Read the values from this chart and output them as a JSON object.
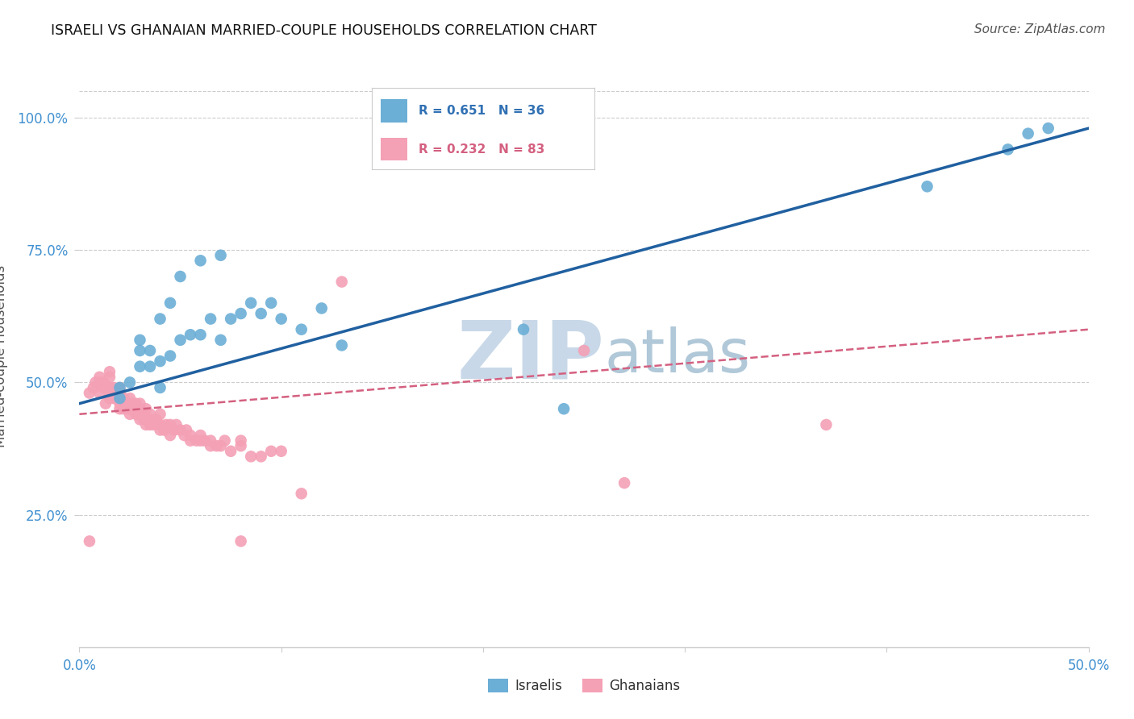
{
  "title": "ISRAELI VS GHANAIAN MARRIED-COUPLE HOUSEHOLDS CORRELATION CHART",
  "source": "Source: ZipAtlas.com",
  "ylabel": "Married-couple Households",
  "xlim": [
    0.0,
    0.5
  ],
  "ylim": [
    0.0,
    1.05
  ],
  "xticks": [
    0.0,
    0.1,
    0.2,
    0.3,
    0.4,
    0.5
  ],
  "xticklabels": [
    "0.0%",
    "",
    "",
    "",
    "",
    "50.0%"
  ],
  "yticks": [
    0.25,
    0.5,
    0.75,
    1.0
  ],
  "yticklabels": [
    "25.0%",
    "50.0%",
    "75.0%",
    "100.0%"
  ],
  "israeli_R": "0.651",
  "israeli_N": "36",
  "ghanaian_R": "0.232",
  "ghanaian_N": "83",
  "israeli_color": "#6baed6",
  "ghanaian_color": "#f4a0b5",
  "israeli_line_color": "#2060a0",
  "ghanaian_line_color": "#d46080",
  "watermark_zip": "ZIP",
  "watermark_atlas": "atlas",
  "watermark_color_zip": "#c8d8e8",
  "watermark_color_atlas": "#b0c8d8",
  "legend_color_israeli": "#3070b3",
  "legend_color_ghanaian": "#d46080",
  "tick_color": "#4090d0",
  "israeli_x": [
    0.02,
    0.02,
    0.025,
    0.03,
    0.03,
    0.03,
    0.035,
    0.035,
    0.04,
    0.04,
    0.04,
    0.045,
    0.045,
    0.05,
    0.05,
    0.055,
    0.06,
    0.06,
    0.065,
    0.07,
    0.07,
    0.075,
    0.08,
    0.085,
    0.09,
    0.095,
    0.1,
    0.11,
    0.12,
    0.13,
    0.22,
    0.24,
    0.42,
    0.46,
    0.47,
    0.48
  ],
  "israeli_y": [
    0.47,
    0.49,
    0.5,
    0.53,
    0.56,
    0.58,
    0.53,
    0.56,
    0.49,
    0.54,
    0.62,
    0.55,
    0.65,
    0.58,
    0.7,
    0.59,
    0.59,
    0.73,
    0.62,
    0.58,
    0.74,
    0.62,
    0.63,
    0.65,
    0.63,
    0.65,
    0.62,
    0.6,
    0.64,
    0.57,
    0.6,
    0.45,
    0.87,
    0.94,
    0.97,
    0.98
  ],
  "ghanaian_x": [
    0.005,
    0.007,
    0.008,
    0.01,
    0.01,
    0.01,
    0.012,
    0.012,
    0.013,
    0.015,
    0.015,
    0.015,
    0.015,
    0.015,
    0.017,
    0.017,
    0.018,
    0.018,
    0.02,
    0.02,
    0.02,
    0.02,
    0.02,
    0.022,
    0.022,
    0.022,
    0.025,
    0.025,
    0.025,
    0.025,
    0.027,
    0.028,
    0.028,
    0.03,
    0.03,
    0.03,
    0.03,
    0.032,
    0.032,
    0.033,
    0.033,
    0.035,
    0.035,
    0.035,
    0.037,
    0.038,
    0.04,
    0.04,
    0.04,
    0.042,
    0.043,
    0.045,
    0.045,
    0.047,
    0.048,
    0.05,
    0.052,
    0.053,
    0.055,
    0.055,
    0.058,
    0.06,
    0.06,
    0.062,
    0.065,
    0.065,
    0.068,
    0.07,
    0.072,
    0.075,
    0.08,
    0.08,
    0.085,
    0.09,
    0.095,
    0.1,
    0.11,
    0.13,
    0.25,
    0.27,
    0.37,
    0.005,
    0.08
  ],
  "ghanaian_y": [
    0.48,
    0.49,
    0.5,
    0.48,
    0.5,
    0.51,
    0.49,
    0.5,
    0.46,
    0.47,
    0.48,
    0.49,
    0.51,
    0.52,
    0.47,
    0.49,
    0.47,
    0.48,
    0.45,
    0.46,
    0.47,
    0.48,
    0.49,
    0.45,
    0.46,
    0.47,
    0.44,
    0.45,
    0.46,
    0.47,
    0.45,
    0.44,
    0.46,
    0.43,
    0.44,
    0.45,
    0.46,
    0.43,
    0.44,
    0.42,
    0.45,
    0.42,
    0.43,
    0.44,
    0.42,
    0.43,
    0.41,
    0.42,
    0.44,
    0.41,
    0.42,
    0.4,
    0.42,
    0.41,
    0.42,
    0.41,
    0.4,
    0.41,
    0.39,
    0.4,
    0.39,
    0.39,
    0.4,
    0.39,
    0.38,
    0.39,
    0.38,
    0.38,
    0.39,
    0.37,
    0.38,
    0.39,
    0.36,
    0.36,
    0.37,
    0.37,
    0.29,
    0.69,
    0.56,
    0.31,
    0.42,
    0.2,
    0.2
  ]
}
